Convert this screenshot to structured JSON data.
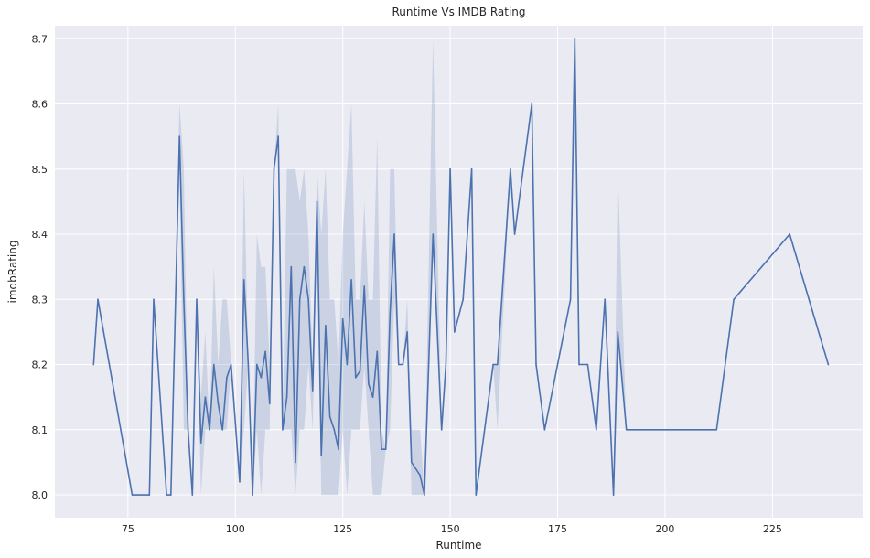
{
  "chart_data": {
    "type": "line",
    "title": "Runtime Vs IMDB Rating",
    "xlabel": "Runtime",
    "ylabel": "imdbRating",
    "xlim": [
      58,
      246
    ],
    "ylim": [
      7.965,
      8.72
    ],
    "xticks": [
      75,
      100,
      125,
      150,
      175,
      200,
      225
    ],
    "yticks": [
      8.0,
      8.1,
      8.2,
      8.3,
      8.4,
      8.5,
      8.6,
      8.7
    ],
    "grid": true,
    "colors": {
      "line": "#4c72b0",
      "band": "#4c72b0",
      "background": "#eaeaf2",
      "grid": "#ffffff"
    },
    "series": [
      {
        "x": [
          67,
          68,
          76,
          80,
          81,
          84,
          85,
          87,
          88,
          89,
          90,
          91,
          92,
          93,
          94,
          95,
          96,
          97,
          98,
          99,
          101,
          102,
          103,
          104,
          105,
          106,
          107,
          108,
          109,
          110,
          111,
          112,
          113,
          114,
          115,
          116,
          117,
          118,
          119,
          120,
          121,
          122,
          123,
          124,
          125,
          126,
          127,
          128,
          129,
          130,
          131,
          132,
          133,
          134,
          135,
          136,
          137,
          138,
          139,
          140,
          141,
          143,
          144,
          146,
          148,
          149,
          150,
          151,
          153,
          155,
          156,
          160,
          161,
          164,
          165,
          169,
          170,
          172,
          178,
          179,
          180,
          182,
          184,
          186,
          188,
          189,
          191,
          212,
          216,
          229,
          238
        ],
        "y": [
          8.2,
          8.3,
          8.0,
          8.0,
          8.3,
          8.0,
          8.0,
          8.55,
          8.3,
          8.1,
          8.0,
          8.3,
          8.08,
          8.15,
          8.1,
          8.2,
          8.14,
          8.1,
          8.18,
          8.2,
          8.02,
          8.33,
          8.2,
          8.0,
          8.2,
          8.18,
          8.22,
          8.14,
          8.5,
          8.55,
          8.1,
          8.15,
          8.35,
          8.05,
          8.3,
          8.35,
          8.3,
          8.16,
          8.45,
          8.06,
          8.26,
          8.12,
          8.1,
          8.07,
          8.27,
          8.2,
          8.33,
          8.18,
          8.19,
          8.32,
          8.17,
          8.15,
          8.22,
          8.07,
          8.07,
          8.28,
          8.4,
          8.2,
          8.2,
          8.25,
          8.05,
          8.03,
          8.0,
          8.4,
          8.1,
          8.2,
          8.5,
          8.25,
          8.3,
          8.5,
          8.0,
          8.2,
          8.2,
          8.5,
          8.4,
          8.6,
          8.2,
          8.1,
          8.3,
          8.7,
          8.2,
          8.2,
          8.1,
          8.3,
          8.0,
          8.25,
          8.1,
          8.1,
          8.3,
          8.4,
          8.2
        ],
        "lo": [
          8.2,
          8.3,
          8.0,
          8.0,
          8.3,
          8.0,
          8.0,
          8.5,
          8.1,
          8.1,
          8.0,
          8.3,
          8.0,
          8.1,
          8.1,
          8.1,
          8.1,
          8.1,
          8.1,
          8.2,
          8.02,
          8.1,
          8.2,
          8.0,
          8.1,
          8.0,
          8.1,
          8.1,
          8.5,
          8.55,
          8.1,
          8.1,
          8.1,
          8.0,
          8.1,
          8.1,
          8.2,
          8.1,
          8.4,
          8.0,
          8.0,
          8.0,
          8.0,
          8.0,
          8.1,
          8.0,
          8.1,
          8.1,
          8.1,
          8.2,
          8.1,
          8.0,
          8.0,
          8.0,
          8.07,
          8.1,
          8.3,
          8.2,
          8.2,
          8.25,
          8.0,
          8.0,
          8.0,
          8.4,
          8.1,
          8.2,
          8.5,
          8.25,
          8.3,
          8.5,
          8.0,
          8.2,
          8.1,
          8.5,
          8.4,
          8.6,
          8.2,
          8.1,
          8.3,
          8.7,
          8.2,
          8.2,
          8.1,
          8.3,
          8.0,
          8.25,
          8.1,
          8.1,
          8.3,
          8.4,
          8.2
        ],
        "hi": [
          8.2,
          8.3,
          8.0,
          8.0,
          8.3,
          8.0,
          8.0,
          8.6,
          8.5,
          8.1,
          8.0,
          8.3,
          8.15,
          8.25,
          8.1,
          8.35,
          8.2,
          8.3,
          8.3,
          8.2,
          8.02,
          8.5,
          8.2,
          8.0,
          8.4,
          8.35,
          8.35,
          8.2,
          8.5,
          8.6,
          8.1,
          8.5,
          8.5,
          8.5,
          8.45,
          8.5,
          8.4,
          8.2,
          8.5,
          8.4,
          8.5,
          8.3,
          8.3,
          8.2,
          8.4,
          8.5,
          8.6,
          8.3,
          8.3,
          8.45,
          8.3,
          8.3,
          8.55,
          8.1,
          8.07,
          8.5,
          8.5,
          8.2,
          8.2,
          8.3,
          8.1,
          8.1,
          8.0,
          8.7,
          8.1,
          8.2,
          8.5,
          8.25,
          8.3,
          8.5,
          8.0,
          8.2,
          8.2,
          8.5,
          8.4,
          8.6,
          8.2,
          8.1,
          8.3,
          8.7,
          8.2,
          8.2,
          8.1,
          8.3,
          8.0,
          8.5,
          8.1,
          8.1,
          8.3,
          8.4,
          8.2
        ]
      }
    ]
  }
}
